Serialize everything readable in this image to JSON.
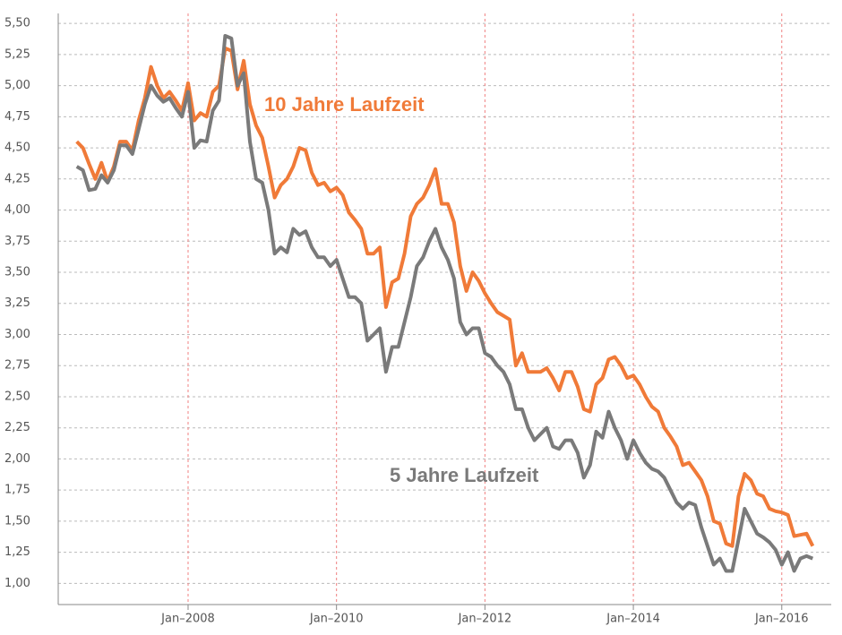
{
  "chart_data": {
    "type": "line",
    "x": [
      "2006-07",
      "2006-08",
      "2006-09",
      "2006-10",
      "2006-11",
      "2006-12",
      "2007-01",
      "2007-02",
      "2007-03",
      "2007-04",
      "2007-05",
      "2007-06",
      "2007-07",
      "2007-08",
      "2007-09",
      "2007-10",
      "2007-11",
      "2007-12",
      "2008-01",
      "2008-02",
      "2008-03",
      "2008-04",
      "2008-05",
      "2008-06",
      "2008-07",
      "2008-08",
      "2008-09",
      "2008-10",
      "2008-11",
      "2008-12",
      "2009-01",
      "2009-02",
      "2009-03",
      "2009-04",
      "2009-05",
      "2009-06",
      "2009-07",
      "2009-08",
      "2009-09",
      "2009-10",
      "2009-11",
      "2009-12",
      "2010-01",
      "2010-02",
      "2010-03",
      "2010-04",
      "2010-05",
      "2010-06",
      "2010-07",
      "2010-08",
      "2010-09",
      "2010-10",
      "2010-11",
      "2010-12",
      "2011-01",
      "2011-02",
      "2011-03",
      "2011-04",
      "2011-05",
      "2011-06",
      "2011-07",
      "2011-08",
      "2011-09",
      "2011-10",
      "2011-11",
      "2011-12",
      "2012-01",
      "2012-02",
      "2012-03",
      "2012-04",
      "2012-05",
      "2012-06",
      "2012-07",
      "2012-08",
      "2012-09",
      "2012-10",
      "2012-11",
      "2012-12",
      "2013-01",
      "2013-02",
      "2013-03",
      "2013-04",
      "2013-05",
      "2013-06",
      "2013-07",
      "2013-08",
      "2013-09",
      "2013-10",
      "2013-11",
      "2013-12",
      "2014-01",
      "2014-02",
      "2014-03",
      "2014-04",
      "2014-05",
      "2014-06",
      "2014-07",
      "2014-08",
      "2014-09",
      "2014-10",
      "2014-11",
      "2014-12",
      "2015-01",
      "2015-02",
      "2015-03",
      "2015-04",
      "2015-05",
      "2015-06",
      "2015-07",
      "2015-08",
      "2015-09",
      "2015-10",
      "2015-11",
      "2015-12",
      "2016-01",
      "2016-02",
      "2016-03",
      "2016-04",
      "2016-05",
      "2016-06"
    ],
    "series": [
      {
        "name": "10 Jahre Laufzeit",
        "color": "#f07a38",
        "values": [
          4.55,
          4.5,
          4.37,
          4.25,
          4.38,
          4.23,
          4.35,
          4.55,
          4.55,
          4.48,
          4.72,
          4.9,
          5.15,
          5.0,
          4.9,
          4.95,
          4.88,
          4.8,
          5.02,
          4.72,
          4.78,
          4.75,
          4.95,
          5.0,
          5.3,
          5.28,
          4.97,
          5.2,
          4.85,
          4.68,
          4.58,
          4.35,
          4.1,
          4.2,
          4.25,
          4.35,
          4.5,
          4.48,
          4.3,
          4.2,
          4.22,
          4.15,
          4.18,
          4.12,
          3.98,
          3.92,
          3.85,
          3.65,
          3.65,
          3.7,
          3.22,
          3.42,
          3.45,
          3.65,
          3.95,
          4.05,
          4.1,
          4.2,
          4.33,
          4.05,
          4.05,
          3.9,
          3.55,
          3.35,
          3.5,
          3.43,
          3.33,
          3.25,
          3.18,
          3.15,
          3.12,
          2.75,
          2.85,
          2.7,
          2.7,
          2.7,
          2.73,
          2.65,
          2.55,
          2.7,
          2.7,
          2.58,
          2.4,
          2.38,
          2.6,
          2.65,
          2.8,
          2.82,
          2.75,
          2.65,
          2.67,
          2.6,
          2.5,
          2.42,
          2.38,
          2.25,
          2.18,
          2.1,
          1.95,
          1.97,
          1.9,
          1.83,
          1.7,
          1.5,
          1.48,
          1.32,
          1.3,
          1.7,
          1.88,
          1.83,
          1.72,
          1.7,
          1.6,
          1.58,
          1.57,
          1.55,
          1.38,
          1.39,
          1.4,
          1.3
        ]
      },
      {
        "name": "5 Jahre Laufzeit",
        "color": "#7a7a7a",
        "values": [
          4.35,
          4.32,
          4.16,
          4.17,
          4.28,
          4.22,
          4.32,
          4.52,
          4.52,
          4.45,
          4.65,
          4.85,
          5.0,
          4.92,
          4.87,
          4.9,
          4.82,
          4.75,
          4.95,
          4.5,
          4.56,
          4.55,
          4.8,
          4.88,
          5.4,
          5.38,
          5.0,
          5.1,
          4.55,
          4.25,
          4.22,
          4.0,
          3.65,
          3.7,
          3.66,
          3.85,
          3.8,
          3.83,
          3.7,
          3.62,
          3.62,
          3.55,
          3.6,
          3.45,
          3.3,
          3.3,
          3.25,
          2.95,
          3.0,
          3.05,
          2.7,
          2.9,
          2.9,
          3.1,
          3.3,
          3.55,
          3.62,
          3.75,
          3.85,
          3.7,
          3.6,
          3.45,
          3.1,
          3.0,
          3.05,
          3.05,
          2.85,
          2.82,
          2.75,
          2.7,
          2.6,
          2.4,
          2.4,
          2.25,
          2.15,
          2.2,
          2.25,
          2.1,
          2.08,
          2.15,
          2.15,
          2.05,
          1.85,
          1.95,
          2.22,
          2.17,
          2.38,
          2.25,
          2.15,
          2.0,
          2.15,
          2.05,
          1.97,
          1.92,
          1.9,
          1.85,
          1.75,
          1.65,
          1.6,
          1.65,
          1.63,
          1.45,
          1.3,
          1.15,
          1.2,
          1.1,
          1.1,
          1.35,
          1.6,
          1.5,
          1.4,
          1.37,
          1.33,
          1.27,
          1.15,
          1.25,
          1.1,
          1.2,
          1.22,
          1.2
        ]
      }
    ],
    "xlim": [
      "2006-04",
      "2016-09"
    ],
    "xticks": [
      {
        "value": "2008-01",
        "label": "Jan–2008"
      },
      {
        "value": "2010-01",
        "label": "Jan–2010"
      },
      {
        "value": "2012-01",
        "label": "Jan–2012"
      },
      {
        "value": "2014-01",
        "label": "Jan–2014"
      },
      {
        "value": "2016-01",
        "label": "Jan–2016"
      }
    ],
    "ylim": [
      0.83,
      5.58
    ],
    "yticks": [
      {
        "value": 1.0,
        "label": "1,00"
      },
      {
        "value": 1.25,
        "label": "1,25"
      },
      {
        "value": 1.5,
        "label": "1,50"
      },
      {
        "value": 1.75,
        "label": "1,75"
      },
      {
        "value": 2.0,
        "label": "2,00"
      },
      {
        "value": 2.25,
        "label": "2,25"
      },
      {
        "value": 2.5,
        "label": "2,50"
      },
      {
        "value": 2.75,
        "label": "2,75"
      },
      {
        "value": 3.0,
        "label": "3,00"
      },
      {
        "value": 3.25,
        "label": "3,25"
      },
      {
        "value": 3.5,
        "label": "3,50"
      },
      {
        "value": 3.75,
        "label": "3,75"
      },
      {
        "value": 4.0,
        "label": "4,00"
      },
      {
        "value": 4.25,
        "label": "4,25"
      },
      {
        "value": 4.5,
        "label": "4,50"
      },
      {
        "value": 4.75,
        "label": "4,75"
      },
      {
        "value": 5.0,
        "label": "5,00"
      },
      {
        "value": 5.25,
        "label": "5,25"
      },
      {
        "value": 5.5,
        "label": "5,50"
      }
    ],
    "grid": true
  }
}
